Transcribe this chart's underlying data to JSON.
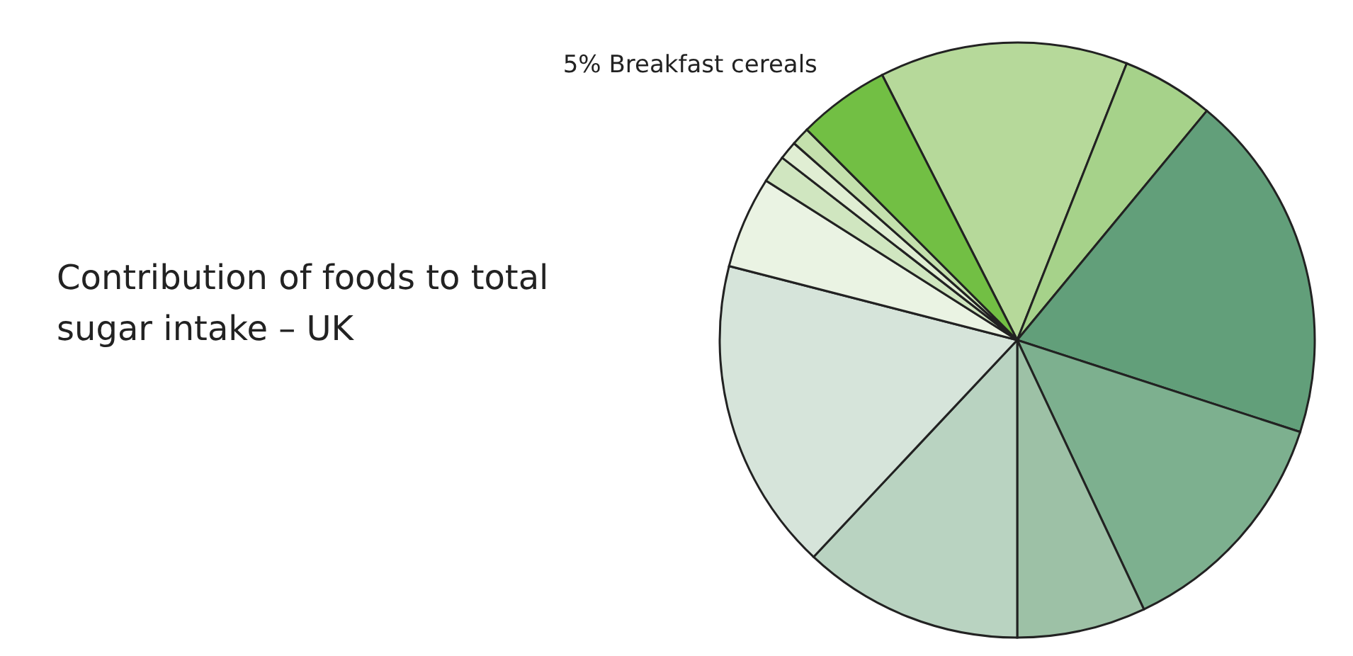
{
  "chart_data": {
    "type": "pie",
    "title": "Contribution of foods to total sugar intake – UK",
    "categories": [
      null,
      null,
      null,
      null,
      null,
      null,
      null,
      null,
      null,
      null,
      null,
      "Breakfast cereals"
    ],
    "values": [
      13.5,
      5,
      19,
      13,
      7,
      12,
      17,
      5,
      1.5,
      1,
      1,
      5
    ],
    "colors": [
      "#b6d99a",
      "#a6d28a",
      "#629f7a",
      "#7db08f",
      "#9dc1a6",
      "#b9d3c1",
      "#d6e4da",
      "#eaf3e3",
      "#d0e6c0",
      "#e0eed3",
      "#c4e0ad",
      "#72bf44"
    ],
    "value_labels": [
      null,
      null,
      null,
      null,
      null,
      null,
      null,
      null,
      null,
      null,
      null,
      "5%"
    ]
  }
}
